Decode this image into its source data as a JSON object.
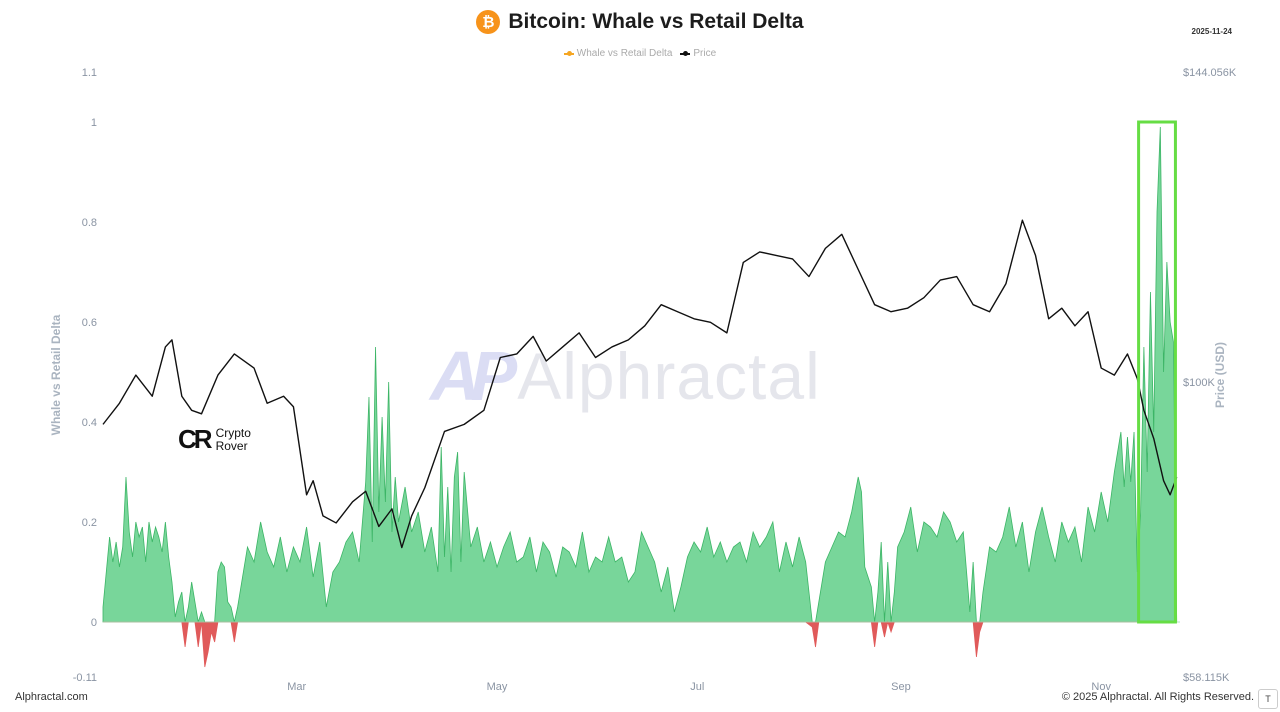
{
  "header": {
    "title": "Bitcoin: Whale vs Retail Delta",
    "icon_glyph": "₿",
    "date": "2025-11-24"
  },
  "legend": {
    "items": [
      {
        "label": "Whale vs Retail Delta",
        "color": "#f5a623"
      },
      {
        "label": "Price",
        "color": "#111111"
      }
    ]
  },
  "watermark": {
    "logo": "AP",
    "text": "Alphractal"
  },
  "crypto_rover": {
    "mark": "CR",
    "line1": "Crypto",
    "line2": "Rover"
  },
  "footer": {
    "left": "Alphractal.com",
    "right": "© 2025 Alphractal. All Rights Reserved.",
    "corner": "T"
  },
  "chart_data": {
    "type": "area",
    "title": "Bitcoin: Whale vs Retail Delta",
    "ylabel": "Whale vs Retail Delta",
    "y2label": "Price (USD)",
    "ylim": [
      -0.11,
      1.1
    ],
    "y2lim": [
      58115,
      144056
    ],
    "y_ticks": [
      {
        "value": 1.1,
        "label": "1.1"
      },
      {
        "value": 1.0,
        "label": "1"
      },
      {
        "value": 0.8,
        "label": "0.8"
      },
      {
        "value": 0.6,
        "label": "0.6"
      },
      {
        "value": 0.4,
        "label": "0.4"
      },
      {
        "value": 0.2,
        "label": "0.2"
      },
      {
        "value": 0.0,
        "label": "0"
      },
      {
        "value": -0.11,
        "label": "-0.11"
      }
    ],
    "y2_ticks": [
      {
        "value": 144056,
        "label": "$144.056K"
      },
      {
        "value": 100000,
        "label": "$100K"
      },
      {
        "value": 58115,
        "label": "$58.115K"
      }
    ],
    "x_ticks": [
      {
        "day": 59,
        "label": "Mar"
      },
      {
        "day": 120,
        "label": "May"
      },
      {
        "day": 181,
        "label": "Jul"
      },
      {
        "day": 243,
        "label": "Sep"
      },
      {
        "day": 304,
        "label": "Nov"
      }
    ],
    "x_range_days": [
      0,
      328
    ],
    "highlight": {
      "from_day": 316,
      "to_day": 326,
      "color": "#66dd44"
    },
    "price": {
      "name": "Price",
      "color": "#111111",
      "points": [
        [
          0,
          94000
        ],
        [
          5,
          97000
        ],
        [
          10,
          101000
        ],
        [
          15,
          98000
        ],
        [
          19,
          105000
        ],
        [
          21,
          106000
        ],
        [
          24,
          98000
        ],
        [
          27,
          96000
        ],
        [
          30,
          95500
        ],
        [
          35,
          101000
        ],
        [
          40,
          104000
        ],
        [
          46,
          102000
        ],
        [
          50,
          97000
        ],
        [
          55,
          98000
        ],
        [
          58,
          96500
        ],
        [
          62,
          84000
        ],
        [
          64,
          86000
        ],
        [
          67,
          81000
        ],
        [
          71,
          80000
        ],
        [
          76,
          83000
        ],
        [
          80,
          84500
        ],
        [
          84,
          79500
        ],
        [
          88,
          82000
        ],
        [
          91,
          76500
        ],
        [
          94,
          81000
        ],
        [
          98,
          85000
        ],
        [
          104,
          93000
        ],
        [
          110,
          94000
        ],
        [
          116,
          96000
        ],
        [
          121,
          103500
        ],
        [
          126,
          104000
        ],
        [
          131,
          106500
        ],
        [
          135,
          103000
        ],
        [
          140,
          105000
        ],
        [
          145,
          107000
        ],
        [
          150,
          103500
        ],
        [
          155,
          105000
        ],
        [
          160,
          106000
        ],
        [
          165,
          108000
        ],
        [
          170,
          111000
        ],
        [
          175,
          110000
        ],
        [
          180,
          109000
        ],
        [
          185,
          108500
        ],
        [
          190,
          107000
        ],
        [
          195,
          117000
        ],
        [
          200,
          118500
        ],
        [
          205,
          118000
        ],
        [
          210,
          117500
        ],
        [
          215,
          115000
        ],
        [
          220,
          119000
        ],
        [
          225,
          121000
        ],
        [
          230,
          116000
        ],
        [
          235,
          111000
        ],
        [
          240,
          110000
        ],
        [
          245,
          110500
        ],
        [
          250,
          112000
        ],
        [
          255,
          114500
        ],
        [
          260,
          115000
        ],
        [
          265,
          111000
        ],
        [
          270,
          110000
        ],
        [
          275,
          114000
        ],
        [
          280,
          123000
        ],
        [
          284,
          118000
        ],
        [
          288,
          109000
        ],
        [
          292,
          110500
        ],
        [
          296,
          108000
        ],
        [
          300,
          110000
        ],
        [
          304,
          102000
        ],
        [
          308,
          101000
        ],
        [
          312,
          104000
        ],
        [
          315,
          100500
        ],
        [
          317,
          96000
        ],
        [
          320,
          92000
        ],
        [
          323,
          86000
        ],
        [
          325,
          84000
        ],
        [
          327,
          86500
        ]
      ]
    },
    "delta": {
      "name": "Whale vs Retail Delta",
      "positive_color": "#78d69a",
      "positive_stroke": "#3cb566",
      "negative_color": "#e05a5a",
      "points": [
        [
          0,
          0.03
        ],
        [
          2,
          0.17
        ],
        [
          3,
          0.12
        ],
        [
          4,
          0.16
        ],
        [
          5,
          0.11
        ],
        [
          6,
          0.15
        ],
        [
          7,
          0.29
        ],
        [
          8,
          0.18
        ],
        [
          9,
          0.13
        ],
        [
          10,
          0.2
        ],
        [
          11,
          0.17
        ],
        [
          12,
          0.19
        ],
        [
          13,
          0.12
        ],
        [
          14,
          0.2
        ],
        [
          15,
          0.16
        ],
        [
          16,
          0.19
        ],
        [
          17,
          0.17
        ],
        [
          18,
          0.14
        ],
        [
          19,
          0.2
        ],
        [
          20,
          0.13
        ],
        [
          21,
          0.08
        ],
        [
          22,
          0.01
        ],
        [
          23,
          0.04
        ],
        [
          24,
          0.06
        ],
        [
          25,
          -0.05
        ],
        [
          26,
          0.03
        ],
        [
          27,
          0.08
        ],
        [
          28,
          0.04
        ],
        [
          29,
          -0.05
        ],
        [
          30,
          0.02
        ],
        [
          31,
          -0.09
        ],
        [
          32,
          -0.06
        ],
        [
          33,
          -0.02
        ],
        [
          34,
          -0.04
        ],
        [
          35,
          0.1
        ],
        [
          36,
          0.12
        ],
        [
          37,
          0.11
        ],
        [
          38,
          0.04
        ],
        [
          39,
          0.03
        ],
        [
          40,
          -0.04
        ],
        [
          41,
          0.03
        ],
        [
          42,
          0.07
        ],
        [
          44,
          0.15
        ],
        [
          46,
          0.12
        ],
        [
          48,
          0.2
        ],
        [
          50,
          0.14
        ],
        [
          52,
          0.11
        ],
        [
          54,
          0.17
        ],
        [
          56,
          0.1
        ],
        [
          58,
          0.15
        ],
        [
          60,
          0.12
        ],
        [
          62,
          0.19
        ],
        [
          64,
          0.09
        ],
        [
          66,
          0.16
        ],
        [
          68,
          0.03
        ],
        [
          70,
          0.1
        ],
        [
          72,
          0.12
        ],
        [
          74,
          0.16
        ],
        [
          76,
          0.18
        ],
        [
          78,
          0.12
        ],
        [
          80,
          0.28
        ],
        [
          81,
          0.45
        ],
        [
          82,
          0.16
        ],
        [
          83,
          0.55
        ],
        [
          84,
          0.22
        ],
        [
          85,
          0.41
        ],
        [
          86,
          0.24
        ],
        [
          87,
          0.48
        ],
        [
          88,
          0.18
        ],
        [
          89,
          0.29
        ],
        [
          90,
          0.2
        ],
        [
          92,
          0.27
        ],
        [
          94,
          0.18
        ],
        [
          96,
          0.22
        ],
        [
          98,
          0.14
        ],
        [
          100,
          0.19
        ],
        [
          102,
          0.1
        ],
        [
          103,
          0.35
        ],
        [
          104,
          0.13
        ],
        [
          105,
          0.27
        ],
        [
          106,
          0.1
        ],
        [
          107,
          0.29
        ],
        [
          108,
          0.34
        ],
        [
          109,
          0.12
        ],
        [
          110,
          0.3
        ],
        [
          112,
          0.15
        ],
        [
          114,
          0.19
        ],
        [
          116,
          0.12
        ],
        [
          118,
          0.16
        ],
        [
          120,
          0.11
        ],
        [
          122,
          0.15
        ],
        [
          124,
          0.18
        ],
        [
          126,
          0.12
        ],
        [
          128,
          0.13
        ],
        [
          130,
          0.17
        ],
        [
          132,
          0.1
        ],
        [
          134,
          0.16
        ],
        [
          136,
          0.14
        ],
        [
          138,
          0.09
        ],
        [
          140,
          0.15
        ],
        [
          142,
          0.14
        ],
        [
          144,
          0.11
        ],
        [
          146,
          0.18
        ],
        [
          148,
          0.1
        ],
        [
          150,
          0.13
        ],
        [
          152,
          0.12
        ],
        [
          154,
          0.17
        ],
        [
          156,
          0.12
        ],
        [
          158,
          0.13
        ],
        [
          160,
          0.08
        ],
        [
          162,
          0.1
        ],
        [
          164,
          0.18
        ],
        [
          166,
          0.15
        ],
        [
          168,
          0.12
        ],
        [
          170,
          0.06
        ],
        [
          172,
          0.11
        ],
        [
          174,
          0.02
        ],
        [
          176,
          0.07
        ],
        [
          178,
          0.13
        ],
        [
          180,
          0.16
        ],
        [
          182,
          0.14
        ],
        [
          184,
          0.19
        ],
        [
          186,
          0.13
        ],
        [
          188,
          0.16
        ],
        [
          190,
          0.12
        ],
        [
          192,
          0.15
        ],
        [
          194,
          0.16
        ],
        [
          196,
          0.12
        ],
        [
          198,
          0.18
        ],
        [
          200,
          0.15
        ],
        [
          202,
          0.17
        ],
        [
          204,
          0.2
        ],
        [
          206,
          0.1
        ],
        [
          208,
          0.16
        ],
        [
          210,
          0.11
        ],
        [
          212,
          0.17
        ],
        [
          214,
          0.12
        ],
        [
          216,
          -0.01
        ],
        [
          217,
          -0.05
        ],
        [
          218,
          0.04
        ],
        [
          219,
          0.08
        ],
        [
          220,
          0.12
        ],
        [
          222,
          0.15
        ],
        [
          224,
          0.18
        ],
        [
          226,
          0.17
        ],
        [
          228,
          0.22
        ],
        [
          230,
          0.29
        ],
        [
          231,
          0.26
        ],
        [
          232,
          0.11
        ],
        [
          234,
          0.07
        ],
        [
          235,
          -0.05
        ],
        [
          236,
          0.06
        ],
        [
          237,
          0.16
        ],
        [
          238,
          -0.03
        ],
        [
          239,
          0.12
        ],
        [
          240,
          -0.02
        ],
        [
          241,
          0.06
        ],
        [
          242,
          0.15
        ],
        [
          244,
          0.18
        ],
        [
          246,
          0.23
        ],
        [
          248,
          0.14
        ],
        [
          250,
          0.2
        ],
        [
          252,
          0.19
        ],
        [
          254,
          0.17
        ],
        [
          256,
          0.22
        ],
        [
          258,
          0.2
        ],
        [
          260,
          0.16
        ],
        [
          262,
          0.18
        ],
        [
          264,
          0.02
        ],
        [
          265,
          0.12
        ],
        [
          266,
          -0.07
        ],
        [
          267,
          -0.02
        ],
        [
          268,
          0.06
        ],
        [
          270,
          0.15
        ],
        [
          272,
          0.14
        ],
        [
          274,
          0.17
        ],
        [
          276,
          0.23
        ],
        [
          278,
          0.15
        ],
        [
          280,
          0.2
        ],
        [
          282,
          0.1
        ],
        [
          284,
          0.18
        ],
        [
          286,
          0.23
        ],
        [
          288,
          0.17
        ],
        [
          290,
          0.12
        ],
        [
          292,
          0.2
        ],
        [
          294,
          0.16
        ],
        [
          296,
          0.19
        ],
        [
          298,
          0.12
        ],
        [
          300,
          0.23
        ],
        [
          302,
          0.18
        ],
        [
          304,
          0.26
        ],
        [
          306,
          0.2
        ],
        [
          308,
          0.3
        ],
        [
          310,
          0.38
        ],
        [
          311,
          0.27
        ],
        [
          312,
          0.37
        ],
        [
          313,
          0.28
        ],
        [
          314,
          0.38
        ],
        [
          315,
          0.1
        ],
        [
          316,
          0.22
        ],
        [
          317,
          0.55
        ],
        [
          318,
          0.3
        ],
        [
          319,
          0.66
        ],
        [
          320,
          0.38
        ],
        [
          321,
          0.82
        ],
        [
          322,
          0.99
        ],
        [
          323,
          0.5
        ],
        [
          324,
          0.72
        ],
        [
          325,
          0.6
        ],
        [
          326,
          0.56
        ],
        [
          327,
          0.0
        ]
      ]
    }
  }
}
